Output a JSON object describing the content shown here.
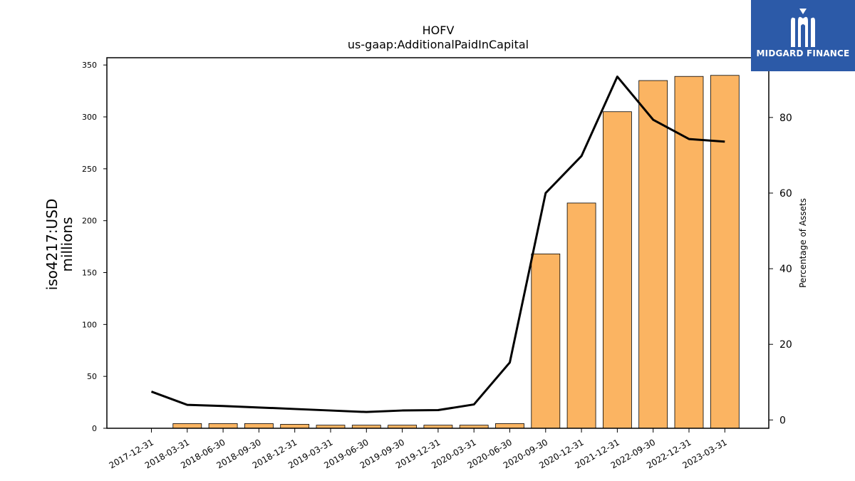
{
  "chart_data": {
    "type": "bar",
    "title": "HOFV",
    "subtitle": "us-gaap:AdditionalPaidInCapital",
    "ylabel": "iso4217:USD\nmillions",
    "y2label": "Percentage of Assets",
    "ylim": [
      0,
      357
    ],
    "y2lim": [
      -2.2,
      95.8
    ],
    "yticks": [
      0,
      50,
      100,
      150,
      200,
      250,
      300,
      350
    ],
    "y2ticks": [
      0,
      20,
      40,
      60,
      80
    ],
    "grid": false,
    "categories": [
      "2017-12-31",
      "2018-03-31",
      "2018-06-30",
      "2018-09-30",
      "2018-12-31",
      "2019-03-31",
      "2019-06-30",
      "2019-09-30",
      "2019-12-31",
      "2020-03-31",
      "2020-06-30",
      "2020-09-30",
      "2020-12-31",
      "2021-12-31",
      "2022-09-30",
      "2022-12-31",
      "2023-03-31"
    ],
    "series": [
      {
        "kind": "bar",
        "axis": "left",
        "color": "#fbb462",
        "values": [
          0,
          4.5,
          4.5,
          4.5,
          3.8,
          3.0,
          3.0,
          3.0,
          3.0,
          3.0,
          4.5,
          168,
          217,
          305,
          335,
          339,
          340
        ]
      },
      {
        "kind": "line",
        "axis": "right",
        "color": "#000000",
        "values": [
          7.5,
          4.0,
          3.7,
          3.3,
          2.9,
          2.5,
          2.1,
          2.5,
          2.6,
          4.1,
          15.2,
          60.0,
          69.8,
          90.8,
          79.4,
          74.3,
          73.6
        ]
      }
    ]
  },
  "logo": {
    "text": "MIDGARD FINANCE",
    "icon": "midgard-m-icon"
  }
}
